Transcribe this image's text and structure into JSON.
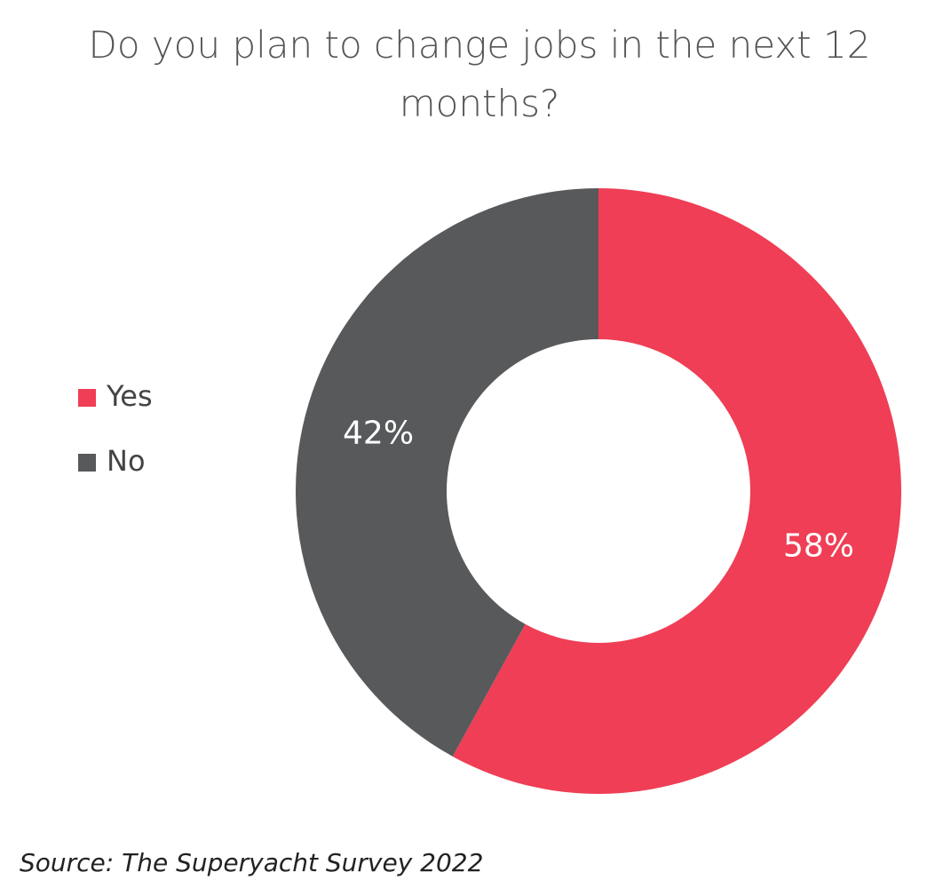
{
  "chart_data": {
    "type": "donut",
    "title": "Do you plan to change jobs in the next 12 months?",
    "categories": [
      "Yes",
      "No"
    ],
    "values": [
      58,
      42
    ],
    "value_labels": [
      "58%",
      "42%"
    ],
    "colors": [
      "#ef3e55",
      "#58595b"
    ],
    "legend": "left",
    "source": "Source: The Superyacht Survey 2022"
  }
}
